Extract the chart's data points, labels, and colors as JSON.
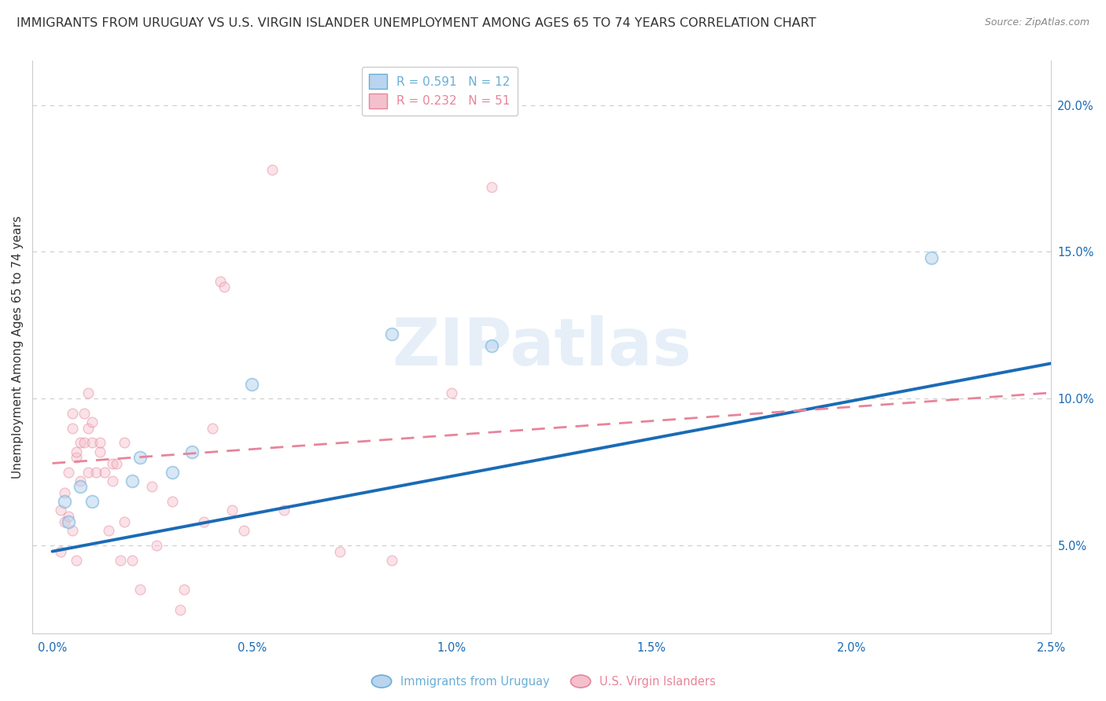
{
  "title": "IMMIGRANTS FROM URUGUAY VS U.S. VIRGIN ISLANDER UNEMPLOYMENT AMONG AGES 65 TO 74 YEARS CORRELATION CHART",
  "source": "Source: ZipAtlas.com",
  "xlabel_ticks": [
    "0.0%",
    "0.5%",
    "1.0%",
    "1.5%",
    "2.0%",
    "2.5%"
  ],
  "xlabel_values": [
    0.0,
    0.5,
    1.0,
    1.5,
    2.0,
    2.5
  ],
  "ylabel": "Unemployment Among Ages 65 to 74 years",
  "ylabel_ticks": [
    "5.0%",
    "10.0%",
    "15.0%",
    "20.0%"
  ],
  "ylabel_values": [
    5.0,
    10.0,
    15.0,
    20.0
  ],
  "xlim": [
    -0.05,
    2.5
  ],
  "ylim": [
    2.0,
    21.5
  ],
  "legend_entries": [
    {
      "label": "R = 0.591   N = 12",
      "color": "#6baed6"
    },
    {
      "label": "R = 0.232   N = 51",
      "color": "#e8849a"
    }
  ],
  "watermark": "ZIPatlas",
  "blue_scatter": [
    [
      0.03,
      6.5
    ],
    [
      0.04,
      5.8
    ],
    [
      0.07,
      7.0
    ],
    [
      0.1,
      6.5
    ],
    [
      0.2,
      7.2
    ],
    [
      0.22,
      8.0
    ],
    [
      0.3,
      7.5
    ],
    [
      0.35,
      8.2
    ],
    [
      0.5,
      10.5
    ],
    [
      0.85,
      12.2
    ],
    [
      1.1,
      11.8
    ],
    [
      2.2,
      14.8
    ]
  ],
  "pink_scatter": [
    [
      0.02,
      6.2
    ],
    [
      0.02,
      4.8
    ],
    [
      0.03,
      6.8
    ],
    [
      0.03,
      5.8
    ],
    [
      0.04,
      7.5
    ],
    [
      0.04,
      6.0
    ],
    [
      0.05,
      5.5
    ],
    [
      0.05,
      9.0
    ],
    [
      0.05,
      9.5
    ],
    [
      0.06,
      8.0
    ],
    [
      0.06,
      8.2
    ],
    [
      0.06,
      4.5
    ],
    [
      0.07,
      7.2
    ],
    [
      0.07,
      8.5
    ],
    [
      0.08,
      8.5
    ],
    [
      0.08,
      9.5
    ],
    [
      0.09,
      7.5
    ],
    [
      0.09,
      9.0
    ],
    [
      0.09,
      10.2
    ],
    [
      0.1,
      8.5
    ],
    [
      0.1,
      9.2
    ],
    [
      0.11,
      7.5
    ],
    [
      0.12,
      8.2
    ],
    [
      0.12,
      8.5
    ],
    [
      0.13,
      7.5
    ],
    [
      0.14,
      5.5
    ],
    [
      0.15,
      7.8
    ],
    [
      0.15,
      7.2
    ],
    [
      0.16,
      7.8
    ],
    [
      0.17,
      4.5
    ],
    [
      0.18,
      8.5
    ],
    [
      0.18,
      5.8
    ],
    [
      0.2,
      4.5
    ],
    [
      0.22,
      3.5
    ],
    [
      0.25,
      7.0
    ],
    [
      0.26,
      5.0
    ],
    [
      0.3,
      6.5
    ],
    [
      0.32,
      2.8
    ],
    [
      0.33,
      3.5
    ],
    [
      0.38,
      5.8
    ],
    [
      0.4,
      9.0
    ],
    [
      0.42,
      14.0
    ],
    [
      0.43,
      13.8
    ],
    [
      0.45,
      6.2
    ],
    [
      0.48,
      5.5
    ],
    [
      0.55,
      17.8
    ],
    [
      0.58,
      6.2
    ],
    [
      0.72,
      4.8
    ],
    [
      0.85,
      4.5
    ],
    [
      1.0,
      10.2
    ],
    [
      1.1,
      17.2
    ]
  ],
  "blue_line": {
    "x0": 0.0,
    "y0": 4.8,
    "x1": 2.5,
    "y1": 11.2
  },
  "pink_line": {
    "x0": 0.0,
    "y0": 7.8,
    "x1": 2.5,
    "y1": 10.2
  },
  "blue_line_color": "#1a6bb5",
  "pink_line_color": "#e8849a",
  "scatter_size_blue": 130,
  "scatter_size_pink": 85,
  "scatter_alpha_blue": 0.55,
  "scatter_alpha_pink": 0.45,
  "scatter_edgecolor_blue": "#6baed6",
  "scatter_facecolor_blue": "#b8d4ee",
  "scatter_edgecolor_pink": "#e8849a",
  "scatter_facecolor_pink": "#f4c0cc",
  "grid_color": "#cccccc",
  "background_color": "#ffffff",
  "axis_label_color": "#1a6bb5",
  "title_color": "#333333",
  "title_fontsize": 11.5,
  "ylabel_fontsize": 11,
  "tick_fontsize": 10.5
}
